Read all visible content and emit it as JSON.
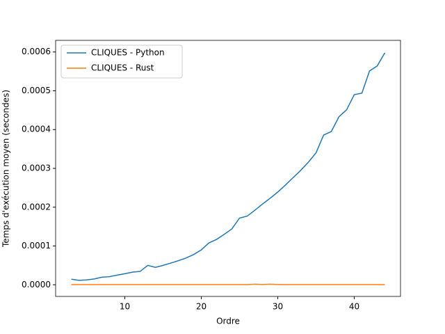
{
  "chart_data": {
    "type": "line",
    "x_label": "Ordre",
    "y_label": "Temps d'exécution moyen (secondes)",
    "x": [
      3,
      4,
      5,
      6,
      7,
      8,
      9,
      10,
      11,
      12,
      13,
      14,
      15,
      16,
      17,
      18,
      19,
      20,
      21,
      22,
      23,
      24,
      25,
      26,
      27,
      28,
      29,
      30,
      31,
      32,
      33,
      34,
      35,
      36,
      37,
      38,
      39,
      40,
      41,
      42,
      43,
      44
    ],
    "series": [
      {
        "name": "CLIQUES - Python",
        "color": "#1f77b4",
        "values": [
          1.43e-05,
          1.15e-05,
          1.25e-05,
          1.5e-05,
          1.96e-05,
          2.1e-05,
          2.5e-05,
          2.86e-05,
          3.25e-05,
          3.45e-05,
          5e-05,
          4.5e-05,
          5e-05,
          5.6e-05,
          6.2e-05,
          6.9e-05,
          7.8e-05,
          9e-05,
          0.000108,
          0.000117,
          0.00013,
          0.000144,
          0.000172,
          0.000177,
          0.000192,
          0.000208,
          0.000223,
          0.000239,
          0.000257,
          0.000276,
          0.000295,
          0.000316,
          0.00034,
          0.000386,
          0.000395,
          0.000433,
          0.000451,
          0.00049,
          0.000494,
          0.000551,
          0.000564,
          0.000598
        ]
      },
      {
        "name": "CLIQUES - Rust",
        "color": "#ff7f0e",
        "values": [
          5e-07,
          5e-07,
          5e-07,
          5e-07,
          5e-07,
          5e-07,
          5e-07,
          5e-07,
          5e-07,
          5e-07,
          5e-07,
          5e-07,
          5e-07,
          5e-07,
          5e-07,
          5e-07,
          5e-07,
          5e-07,
          5e-07,
          5e-07,
          5e-07,
          5e-07,
          5e-07,
          5e-07,
          1.5e-06,
          8e-07,
          1.5e-06,
          8e-07,
          5e-07,
          5e-07,
          5e-07,
          5e-07,
          5e-07,
          5e-07,
          5e-07,
          5e-07,
          5e-07,
          5e-07,
          5e-07,
          5e-07,
          5e-07,
          5e-07
        ]
      }
    ],
    "xlim": [
      0.95,
      46.05
    ],
    "ylim": [
      -3e-05,
      0.00063
    ],
    "xticks": [
      10,
      20,
      30,
      40
    ],
    "yticks": [
      {
        "value": 0,
        "label": "0.0000"
      },
      {
        "value": 0.0001,
        "label": "0.0001"
      },
      {
        "value": 0.0002,
        "label": "0.0002"
      },
      {
        "value": 0.0003,
        "label": "0.0003"
      },
      {
        "value": 0.0004,
        "label": "0.0004"
      },
      {
        "value": 0.0005,
        "label": "0.0005"
      },
      {
        "value": 0.0006,
        "label": "0.0006"
      }
    ],
    "legend": "upper left"
  }
}
